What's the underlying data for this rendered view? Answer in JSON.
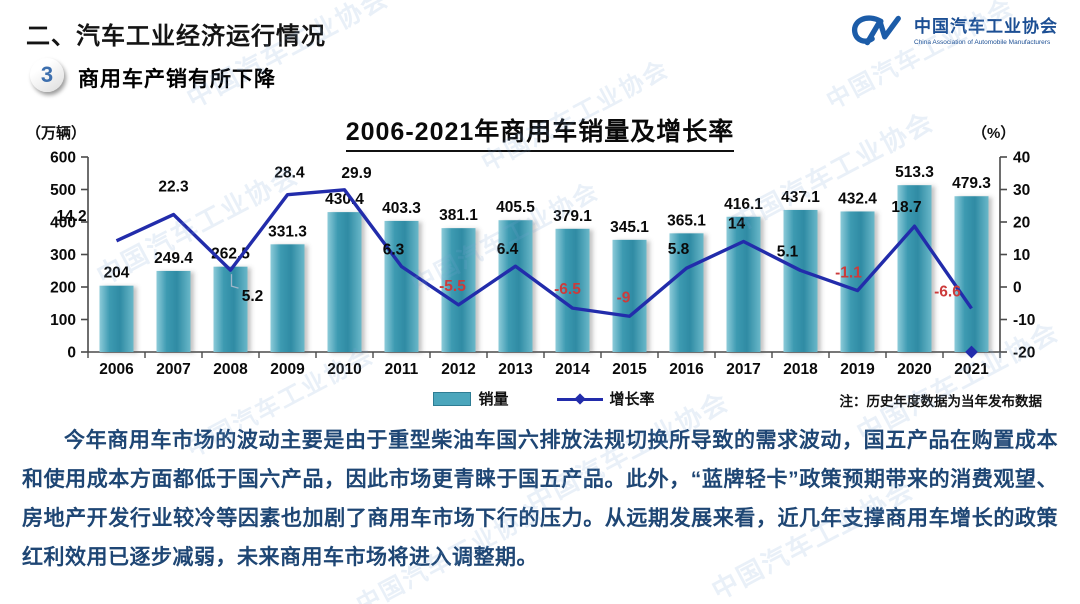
{
  "header": {
    "section_title": "二、汽车工业经济运行情况",
    "badge_number": "3",
    "slide_title": "商用车产销有所下降",
    "logo": {
      "cn": "中国汽车工业协会",
      "en": "China Association of Automobile Manufacturers"
    }
  },
  "chart_data": {
    "type": "bar+line",
    "title": "2006-2021年商用车销量及增长率",
    "left_axis": {
      "unit": "（万辆）",
      "min": 0,
      "max": 600,
      "step": 100
    },
    "right_axis": {
      "unit": "（%）",
      "min": -20,
      "max": 40,
      "step": 10
    },
    "categories": [
      "2006",
      "2007",
      "2008",
      "2009",
      "2010",
      "2011",
      "2012",
      "2013",
      "2014",
      "2015",
      "2016",
      "2017",
      "2018",
      "2019",
      "2020",
      "2021"
    ],
    "series": [
      {
        "name": "销量",
        "type": "bar",
        "values": [
          204,
          249.4,
          262.5,
          331.3,
          430.4,
          403.3,
          381.1,
          405.5,
          379.1,
          345.1,
          365.1,
          416.1,
          437.1,
          432.4,
          513.3,
          479.3
        ]
      },
      {
        "name": "增长率",
        "type": "line",
        "values": [
          14.2,
          22.3,
          5.2,
          28.4,
          29.9,
          6.3,
          -5.5,
          6.4,
          -6.5,
          -9,
          5.8,
          14,
          5.1,
          -1.1,
          18.7,
          -6.6
        ]
      }
    ],
    "legend_position": "bottom",
    "grid": false,
    "note": "注：历史年度数据为当年发布数据",
    "colors": {
      "bar": "#4ba6bc",
      "line": "#222cab",
      "positive_label": "#0a0a0a",
      "negative_label": "#cc3b3b"
    }
  },
  "body": {
    "paragraph": "今年商用车市场的波动主要是由于重型柴油车国六排放法规切换所导致的需求波动，国五产品在购置成本和使用成本方面都低于国六产品，因此市场更青睐于国五产品。此外，“蓝牌轻卡”政策预期带来的消费观望、房地产开发行业较冷等因素也加剧了商用车市场下行的压力。从远期发展来看，近几年支撑商用车增长的政策红利效用已逐步减弱，未来商用车市场将进入调整期。"
  },
  "watermark": {
    "text": "中国汽车工业协会"
  }
}
